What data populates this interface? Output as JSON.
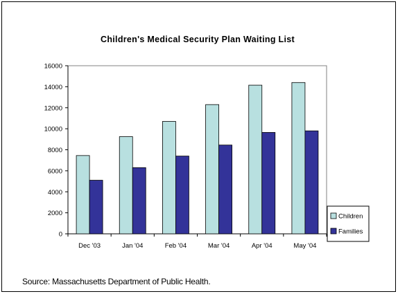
{
  "chart_data": {
    "type": "bar",
    "title": "Children's Medical Security Plan Waiting List",
    "xlabel": "",
    "ylabel": "",
    "categories": [
      "Dec '03",
      "Jan '04",
      "Feb '04",
      "Mar '04",
      "Apr '04",
      "May '04"
    ],
    "series": [
      {
        "name": "Children",
        "values": [
          7450,
          9250,
          10700,
          12300,
          14150,
          14400
        ],
        "color": "#b8e0e0"
      },
      {
        "name": "Families",
        "values": [
          5100,
          6300,
          7400,
          8450,
          9650,
          9800
        ],
        "color": "#333399"
      }
    ],
    "ylim": [
      0,
      16000
    ],
    "yticks": [
      0,
      2000,
      4000,
      6000,
      8000,
      10000,
      12000,
      14000,
      16000
    ],
    "grid": false,
    "legend": "right"
  },
  "source_note": "Source: Massachusetts Department of Public Health."
}
